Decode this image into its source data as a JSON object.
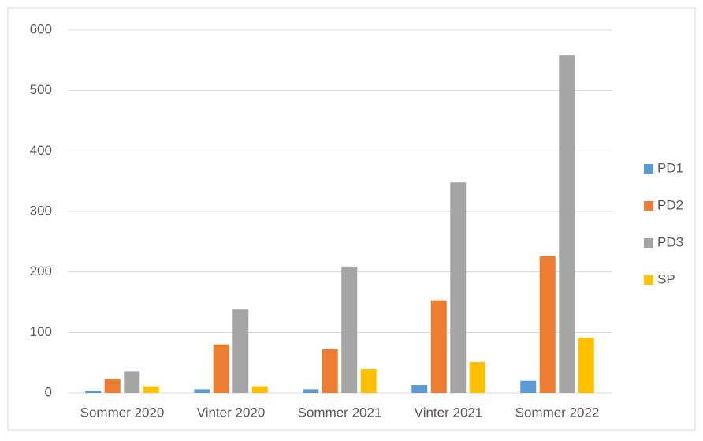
{
  "chart_data": {
    "type": "bar",
    "categories": [
      "Sommer 2020",
      "Vinter 2020",
      "Sommer 2021",
      "Vinter 2021",
      "Sommer 2022"
    ],
    "series": [
      {
        "name": "PD1",
        "color": "#5b9bd5",
        "values": [
          4,
          6,
          6,
          13,
          20
        ]
      },
      {
        "name": "PD2",
        "color": "#ed7d31",
        "values": [
          23,
          80,
          72,
          153,
          226
        ]
      },
      {
        "name": "PD3",
        "color": "#a5a5a5",
        "values": [
          36,
          138,
          209,
          348,
          558
        ]
      },
      {
        "name": "SP",
        "color": "#ffc000",
        "values": [
          11,
          11,
          39,
          51,
          91
        ]
      }
    ],
    "ylim": [
      0,
      600
    ],
    "yticks": [
      0,
      100,
      200,
      300,
      400,
      500,
      600
    ],
    "grid": true,
    "legend": "right"
  }
}
